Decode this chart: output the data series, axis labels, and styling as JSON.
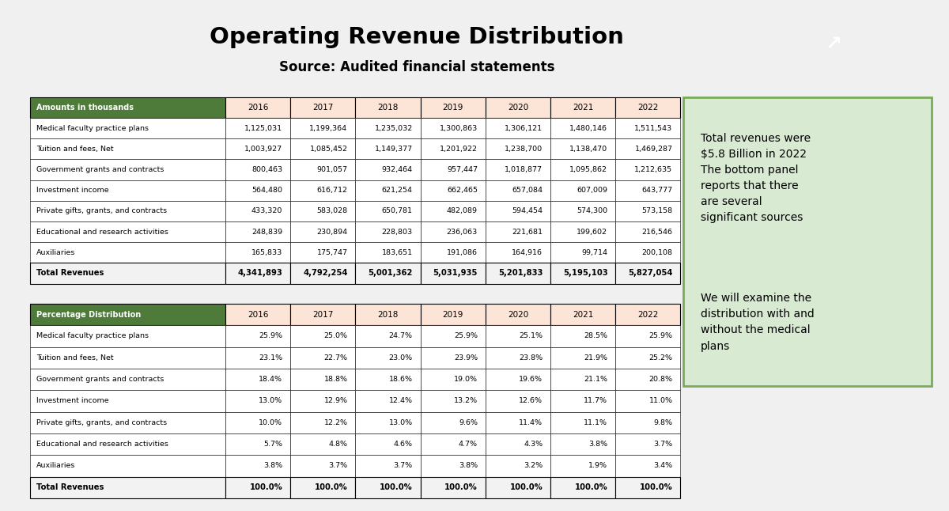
{
  "title": "Operating Revenue Distribution",
  "subtitle": "Source: Audited financial statements",
  "title_bg": "#d6dce4",
  "bg_color": "#e8e8e8",
  "years": [
    "2016",
    "2017",
    "2018",
    "2019",
    "2020",
    "2021",
    "2022"
  ],
  "header_color": "#4e7a3a",
  "header_text_color": "#ffffff",
  "year_header_bg": "#fce4d6",
  "table1_label": "Amounts in thousands",
  "table1_rows": [
    [
      "Medical faculty practice plans",
      "1,125,031",
      "1,199,364",
      "1,235,032",
      "1,300,863",
      "1,306,121",
      "1,480,146",
      "1,511,543"
    ],
    [
      "Tuition and fees, Net",
      "1,003,927",
      "1,085,452",
      "1,149,377",
      "1,201,922",
      "1,238,700",
      "1,138,470",
      "1,469,287"
    ],
    [
      "Government grants and contracts",
      "800,463",
      "901,057",
      "932,464",
      "957,447",
      "1,018,877",
      "1,095,862",
      "1,212,635"
    ],
    [
      "Investment income",
      "564,480",
      "616,712",
      "621,254",
      "662,465",
      "657,084",
      "607,009",
      "643,777"
    ],
    [
      "Private gifts, grants, and contracts",
      "433,320",
      "583,028",
      "650,781",
      "482,089",
      "594,454",
      "574,300",
      "573,158"
    ],
    [
      "Educational and research activities",
      "248,839",
      "230,894",
      "228,803",
      "236,063",
      "221,681",
      "199,602",
      "216,546"
    ],
    [
      "Auxiliaries",
      "165,833",
      "175,747",
      "183,651",
      "191,086",
      "164,916",
      "99,714",
      "200,108"
    ]
  ],
  "table1_total": [
    "Total Revenues",
    "4,341,893",
    "4,792,254",
    "5,001,362",
    "5,031,935",
    "5,201,833",
    "5,195,103",
    "5,827,054"
  ],
  "table2_label": "Percentage Distribution",
  "table2_rows": [
    [
      "Medical faculty practice plans",
      "25.9%",
      "25.0%",
      "24.7%",
      "25.9%",
      "25.1%",
      "28.5%",
      "25.9%"
    ],
    [
      "Tuition and fees, Net",
      "23.1%",
      "22.7%",
      "23.0%",
      "23.9%",
      "23.8%",
      "21.9%",
      "25.2%"
    ],
    [
      "Government grants and contracts",
      "18.4%",
      "18.8%",
      "18.6%",
      "19.0%",
      "19.6%",
      "21.1%",
      "20.8%"
    ],
    [
      "Investment income",
      "13.0%",
      "12.9%",
      "12.4%",
      "13.2%",
      "12.6%",
      "11.7%",
      "11.0%"
    ],
    [
      "Private gifts, grants, and contracts",
      "10.0%",
      "12.2%",
      "13.0%",
      "9.6%",
      "11.4%",
      "11.1%",
      "9.8%"
    ],
    [
      "Educational and research activities",
      "5.7%",
      "4.8%",
      "4.6%",
      "4.7%",
      "4.3%",
      "3.8%",
      "3.7%"
    ],
    [
      "Auxiliaries",
      "3.8%",
      "3.7%",
      "3.7%",
      "3.8%",
      "3.2%",
      "1.9%",
      "3.4%"
    ]
  ],
  "table2_total": [
    "Total Revenues",
    "100.0%",
    "100.0%",
    "100.0%",
    "100.0%",
    "100.0%",
    "100.0%",
    "100.0%"
  ],
  "annotation_text1": "Total revenues were\n$5.8 Billion in 2022\nThe bottom panel\nreports that there\nare several\nsignificant sources",
  "annotation_text2": "We will examine the\ndistribution with and\nwithout the medical\nplans",
  "annotation_bg": "#d9ead3",
  "annotation_border": "#7aaa5a"
}
